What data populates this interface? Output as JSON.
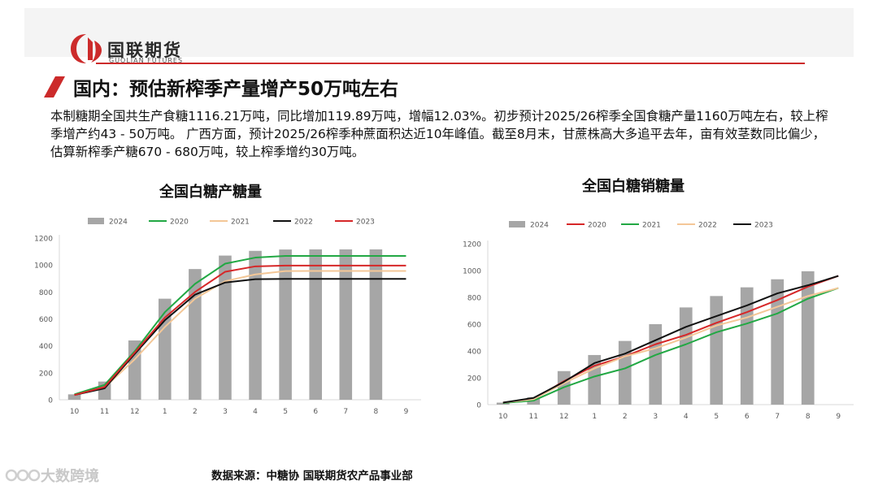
{
  "header": {
    "logo_name": "国联期货",
    "logo_en": "GUOLIAN FUTURES"
  },
  "page_title": "国内：预估新榨季产量增产50万吨左右",
  "body_text": "本制糖期全国共生产食糖1116.21万吨，同比增加119.89万吨，增幅12.03%。初步预计2025/26榨季全国食糖产量1160万吨左右，较上榨季增产约43 - 50万吨。 广西方面，预计2025/26榨季种蔗面积达近10年峰值。截至8月末，甘蔗株高大多追平去年，亩有效茎数同比偏少，估算新榨季产糖670 - 680万吨，较上榨季增约30万吨。",
  "source": "数据来源：中糖协 国联期货农产品事业部",
  "watermark": "大数跨境",
  "colors": {
    "accent_red": "#cc2b2b",
    "bar_2024": "#a6a6a6",
    "line_2020_left": "#22a844",
    "line_2021_left": "#f4c797",
    "line_2022": "#111111",
    "line_2023": "#d62728",
    "line_2020_right": "#d62728",
    "line_2021_right": "#22a844",
    "line_2022_right": "#f4c797",
    "line_2023_right": "#111111"
  },
  "chart_data": [
    {
      "type": "bar",
      "title": "全国白糖产糖量",
      "categories": [
        "10",
        "11",
        "12",
        "1",
        "2",
        "3",
        "4",
        "5",
        "6",
        "7",
        "8",
        "9"
      ],
      "ylim": [
        0,
        1200
      ],
      "yticks": [
        0,
        200,
        400,
        600,
        800,
        1000,
        1200
      ],
      "grid": false,
      "legend": "top",
      "series": [
        {
          "name": "2024",
          "kind": "bar",
          "color": "#a6a6a6",
          "values": [
            40,
            135,
            440,
            750,
            970,
            1070,
            1105,
            1115,
            1116,
            1116,
            1116,
            null
          ]
        },
        {
          "name": "2020",
          "kind": "line",
          "color": "#22a844",
          "values": [
            40,
            110,
            360,
            650,
            860,
            1010,
            1055,
            1067,
            1067,
            1067,
            1067,
            1067
          ]
        },
        {
          "name": "2021",
          "kind": "line",
          "color": "#f4c797",
          "values": [
            35,
            90,
            300,
            540,
            750,
            880,
            930,
            955,
            956,
            956,
            956,
            956
          ]
        },
        {
          "name": "2022",
          "kind": "line",
          "color": "#111111",
          "values": [
            35,
            85,
            340,
            590,
            780,
            870,
            895,
            897,
            897,
            897,
            897,
            897
          ]
        },
        {
          "name": "2023",
          "kind": "line",
          "color": "#d62728",
          "values": [
            35,
            95,
            350,
            610,
            800,
            950,
            990,
            996,
            996,
            996,
            996,
            996
          ]
        }
      ]
    },
    {
      "type": "bar",
      "title": "全国白糖销糖量",
      "categories": [
        "10",
        "11",
        "12",
        "1",
        "2",
        "3",
        "4",
        "5",
        "6",
        "7",
        "8",
        "9"
      ],
      "ylim": [
        0,
        1200
      ],
      "yticks": [
        0,
        200,
        400,
        600,
        800,
        1000,
        1200
      ],
      "grid": false,
      "legend": "top",
      "series": [
        {
          "name": "2024",
          "kind": "bar",
          "color": "#a6a6a6",
          "values": [
            15,
            55,
            250,
            370,
            475,
            600,
            725,
            810,
            875,
            935,
            995,
            null
          ]
        },
        {
          "name": "2020",
          "kind": "line",
          "color": "#d62728",
          "values": [
            15,
            40,
            175,
            290,
            360,
            450,
            520,
            610,
            690,
            780,
            880,
            960
          ]
        },
        {
          "name": "2021",
          "kind": "line",
          "color": "#22a844",
          "values": [
            12,
            30,
            130,
            210,
            270,
            370,
            450,
            540,
            605,
            680,
            790,
            870
          ]
        },
        {
          "name": "2022",
          "kind": "line",
          "color": "#f4c797",
          "values": [
            15,
            40,
            160,
            270,
            360,
            420,
            500,
            590,
            650,
            730,
            810,
            870
          ]
        },
        {
          "name": "2023",
          "kind": "line",
          "color": "#111111",
          "values": [
            15,
            50,
            170,
            310,
            380,
            480,
            580,
            660,
            740,
            830,
            890,
            960
          ]
        }
      ]
    }
  ]
}
